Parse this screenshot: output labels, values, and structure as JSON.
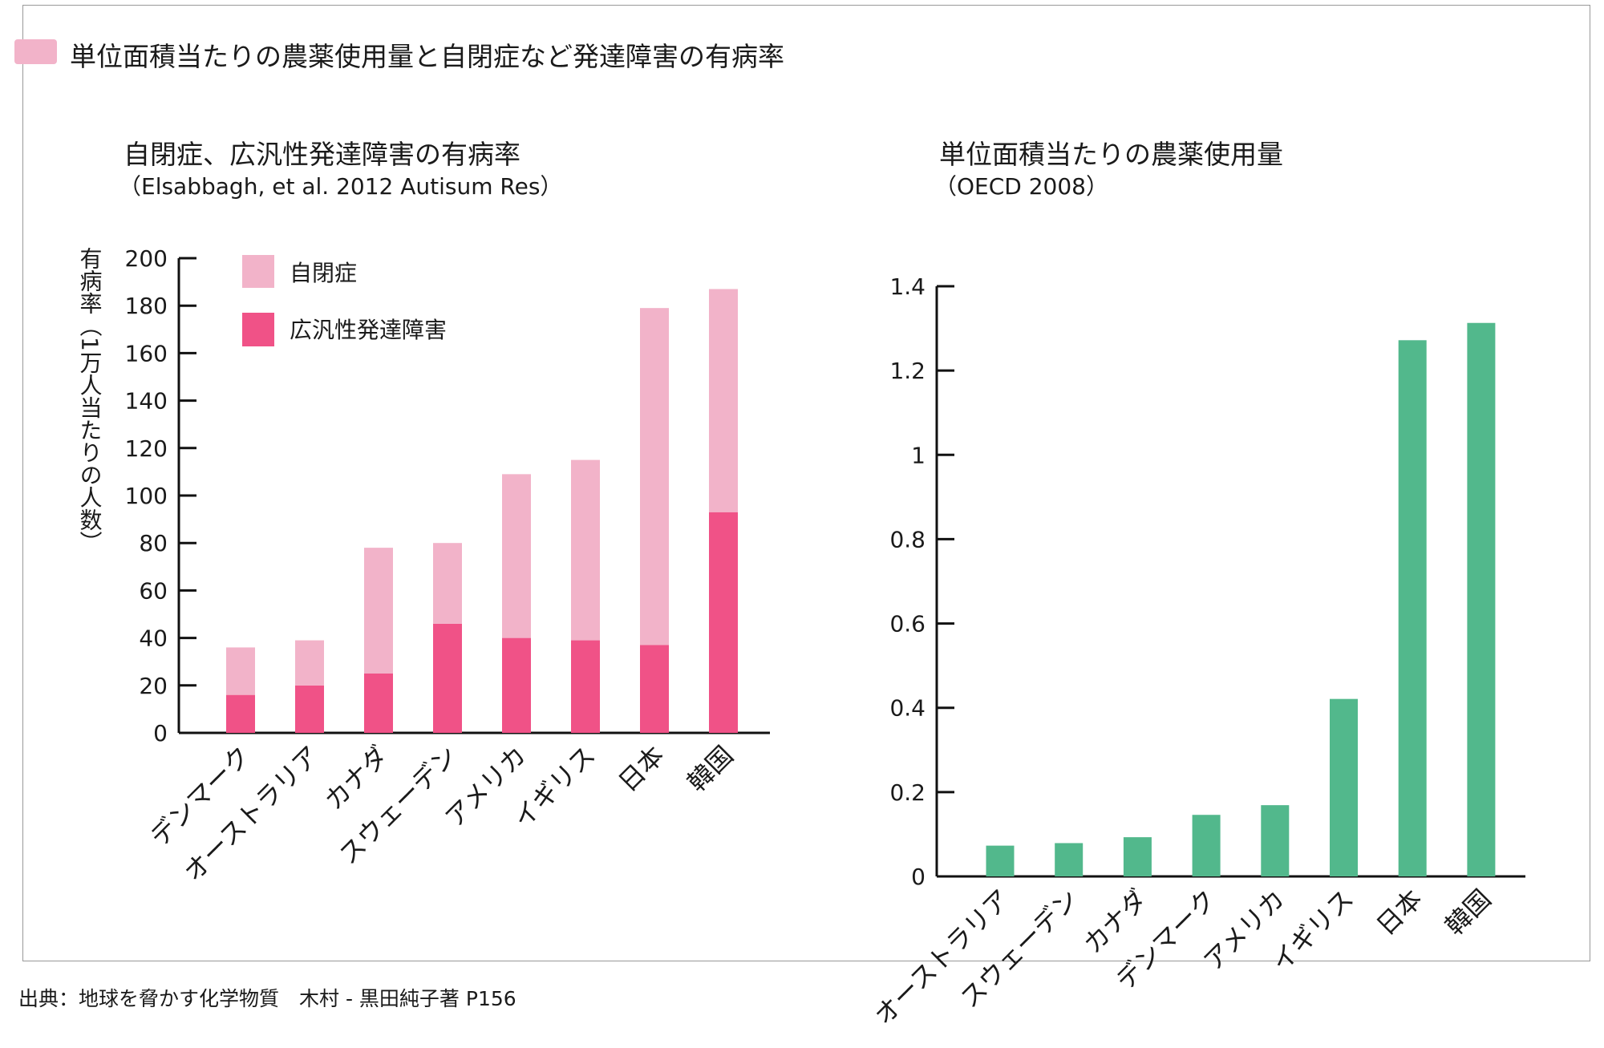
{
  "header": {
    "title": "単位面積当たりの農薬使用量と自閉症など発達障害の有病率",
    "swatch_color": "#f2b3c9"
  },
  "footer": {
    "source": "出典：地球を脅かす化学物質　木村 - 黒田純子著 P156"
  },
  "colors": {
    "autism": "#f2b3c9",
    "pdd": "#f05287",
    "pesticide": "#52b88c"
  },
  "chart_data": [
    {
      "type": "bar",
      "stacked": true,
      "title": "自閉症、広汎性発達障害の有病率",
      "subtitle": "（Elsabbagh, et al. 2012 Autisum Res）",
      "ylabel": "有病率（1万人当たりの人数）",
      "xlabel": "",
      "ylim": [
        0,
        200
      ],
      "yticks": [
        0,
        20,
        40,
        60,
        80,
        100,
        120,
        140,
        160,
        180,
        200
      ],
      "categories": [
        "デンマーク",
        "オーストラリア",
        "カナダ",
        "スウェーデン",
        "アメリカ",
        "イギリス",
        "日本",
        "韓国"
      ],
      "legend_position": "top-left",
      "series": [
        {
          "name": "広汎性発達障害",
          "values": [
            16,
            20,
            25,
            46,
            40,
            39,
            37,
            93
          ]
        },
        {
          "name": "自閉症",
          "values": [
            20,
            19,
            53,
            34,
            69,
            76,
            142,
            94
          ]
        }
      ]
    },
    {
      "type": "bar",
      "title": "単位面積当たりの農薬使用量",
      "subtitle": "（OECD 2008）",
      "xlabel": "",
      "ylabel": "",
      "ylim": [
        0,
        1.4
      ],
      "yticks": [
        "0",
        "0.2",
        "0.4",
        "0.6",
        "0.8",
        "1",
        "1.2",
        "1.4"
      ],
      "categories": [
        "オーストラリア",
        "スウェーデン",
        "カナダ",
        "デンマーク",
        "アメリカ",
        "イギリス",
        "日本",
        "韓国"
      ],
      "values": [
        0.073,
        0.079,
        0.093,
        0.146,
        0.169,
        0.421,
        1.272,
        1.313
      ]
    }
  ]
}
